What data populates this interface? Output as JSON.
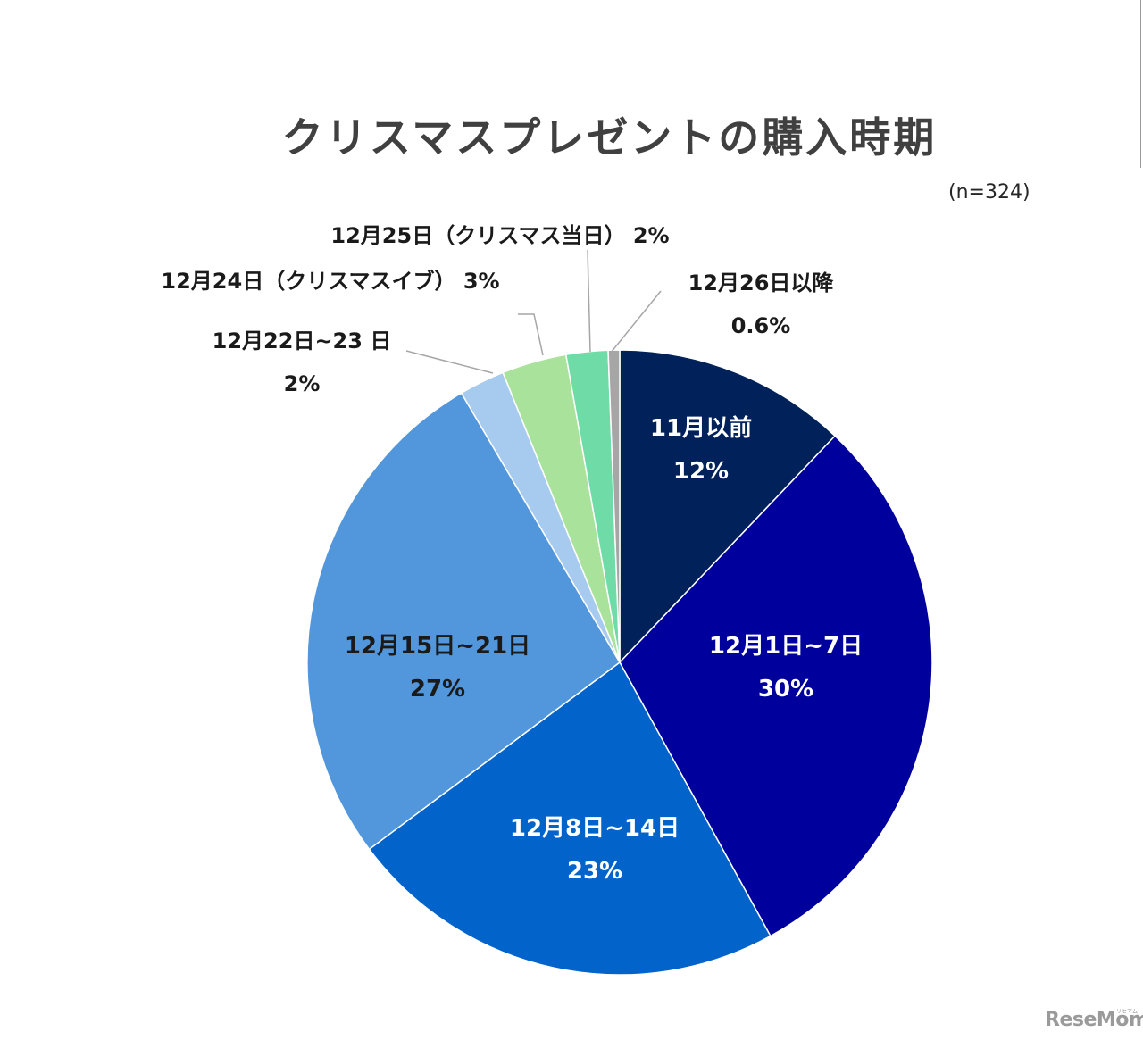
{
  "chart_data": {
    "type": "pie",
    "title": "クリスマスプレゼントの購入時期",
    "note": "(n=324)",
    "slices": [
      {
        "label": "11月以前",
        "value_label": "12%",
        "value": 12.3,
        "color": "#00215a",
        "text_color": "#ffffff"
      },
      {
        "label": "12月1日~7日",
        "value_label": "30%",
        "value": 30.4,
        "color": "#00009c",
        "text_color": "#ffffff"
      },
      {
        "label": "12月8日~14日",
        "value_label": "23%",
        "value": 23.2,
        "color": "#0263cb",
        "text_color": "#ffffff"
      },
      {
        "label": "12月15日~21日",
        "value_label": "27%",
        "value": 27.2,
        "color": "#5296db",
        "text_color": "#1a1a1a"
      },
      {
        "label": "12月22日~23 日",
        "value_label": "2%",
        "value": 2.4,
        "color": "#a7cbef",
        "text_color": "#1a1a1a"
      },
      {
        "label": "12月24日（クリスマスイブ） 3%",
        "value_label": "",
        "value": 3.4,
        "color": "#a9e29a",
        "text_color": "#1a1a1a"
      },
      {
        "label": "12月25日（クリスマス当日） 2%",
        "value_label": "",
        "value": 2.2,
        "color": "#6fdca8",
        "text_color": "#1a1a1a"
      },
      {
        "label": "12月26日以降",
        "value_label": "0.6%",
        "value": 0.6,
        "color": "#a6a6a6",
        "text_color": "#1a1a1a"
      }
    ]
  },
  "watermark": {
    "text": "ReseMom",
    "sub": "リセマム"
  }
}
